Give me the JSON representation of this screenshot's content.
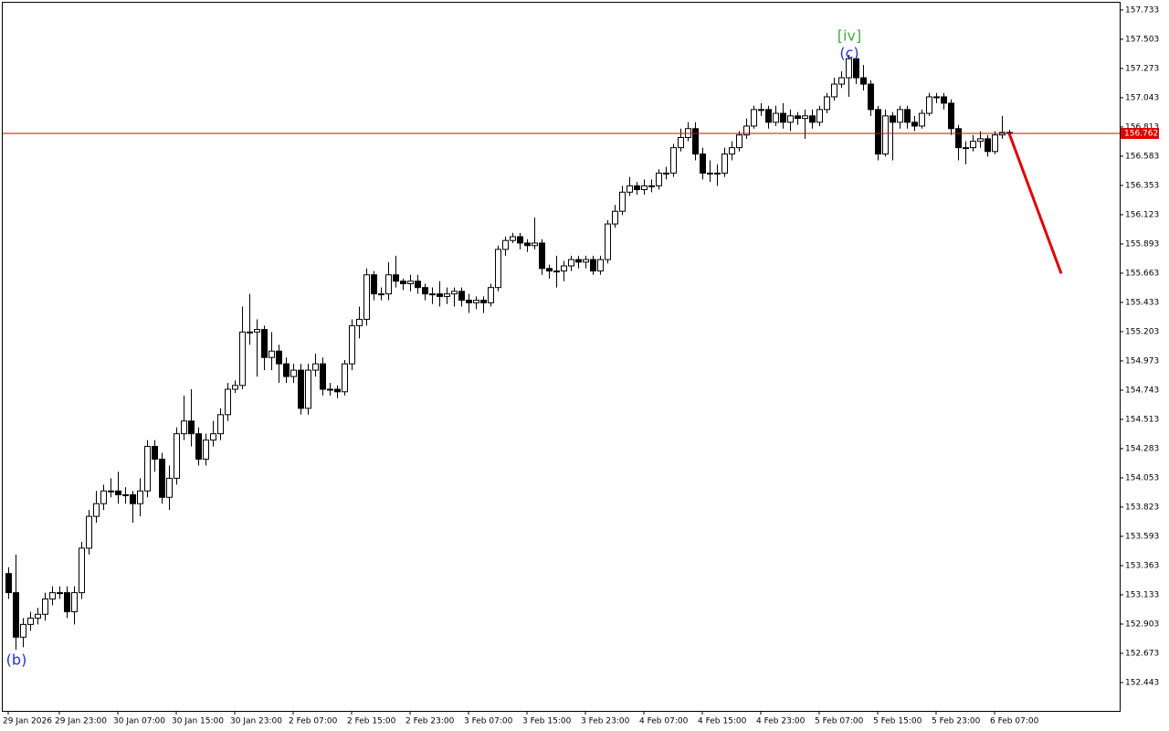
{
  "chart_data": {
    "type": "candlestick",
    "categories": [
      "29 Jan 2026",
      null,
      null,
      null,
      null,
      null,
      null,
      "29 Jan 23:00",
      null,
      null,
      null,
      null,
      null,
      null,
      null,
      "30 Jan 07:00",
      null,
      null,
      null,
      null,
      null,
      null,
      null,
      "30 Jan 15:00",
      null,
      null,
      null,
      null,
      null,
      null,
      null,
      "30 Jan 23:00",
      null,
      null,
      null,
      null,
      null,
      null,
      null,
      "2 Feb 07:00",
      null,
      null,
      null,
      null,
      null,
      null,
      null,
      "2 Feb 15:00",
      null,
      null,
      null,
      null,
      null,
      null,
      null,
      "2 Feb 23:00",
      null,
      null,
      null,
      null,
      null,
      null,
      null,
      "3 Feb 07:00",
      null,
      null,
      null,
      null,
      null,
      null,
      null,
      "3 Feb 15:00",
      null,
      null,
      null,
      null,
      null,
      null,
      null,
      "3 Feb 23:00",
      null,
      null,
      null,
      null,
      null,
      null,
      null,
      "4 Feb 07:00",
      null,
      null,
      null,
      null,
      null,
      null,
      null,
      "4 Feb 15:00",
      null,
      null,
      null,
      null,
      null,
      null,
      null,
      "4 Feb 23:00",
      null,
      null,
      null,
      null,
      null,
      null,
      null,
      "5 Feb 07:00",
      null,
      null,
      null,
      null,
      null,
      null,
      null,
      "5 Feb 15:00",
      null,
      null,
      null,
      null,
      null,
      null,
      null,
      "5 Feb 23:00",
      null,
      null,
      null,
      null,
      null,
      null,
      null,
      "6 Feb 07:00",
      null,
      null
    ],
    "open": [
      153.3,
      153.15,
      152.8,
      152.9,
      152.95,
      152.98,
      153.1,
      153.15,
      153.15,
      153.0,
      153.15,
      153.5,
      153.75,
      153.85,
      153.95,
      153.95,
      153.92,
      153.92,
      153.85,
      153.95,
      154.3,
      154.2,
      153.9,
      154.05,
      154.4,
      154.5,
      154.4,
      154.2,
      154.35,
      154.4,
      154.55,
      154.75,
      154.78,
      155.2,
      155.2,
      155.22,
      155.0,
      155.05,
      154.95,
      154.85,
      154.9,
      154.6,
      154.9,
      154.95,
      154.75,
      154.75,
      154.73,
      154.95,
      155.25,
      155.3,
      155.65,
      155.5,
      155.5,
      155.65,
      155.6,
      155.58,
      155.6,
      155.55,
      155.5,
      155.5,
      155.48,
      155.5,
      155.52,
      155.45,
      155.43,
      155.45,
      155.43,
      155.55,
      155.85,
      155.92,
      155.95,
      155.9,
      155.88,
      155.9,
      155.7,
      155.68,
      155.68,
      155.72,
      155.77,
      155.75,
      155.77,
      155.68,
      155.77,
      156.05,
      156.15,
      156.3,
      156.35,
      156.32,
      156.35,
      156.35,
      156.45,
      156.45,
      156.65,
      156.73,
      156.8,
      156.6,
      156.45,
      156.45,
      156.45,
      156.6,
      156.65,
      156.75,
      156.82,
      156.95,
      156.95,
      156.85,
      156.92,
      156.85,
      156.9,
      156.88,
      156.9,
      156.85,
      156.95,
      157.05,
      157.15,
      157.2,
      157.35,
      157.2,
      157.15,
      156.95,
      156.6,
      156.9,
      156.85,
      156.95,
      156.85,
      156.82,
      156.92,
      157.05,
      157.05,
      157.0,
      156.8,
      156.65,
      156.65,
      156.7,
      156.72,
      156.62,
      156.75,
      156.77
    ],
    "high": [
      153.35,
      153.45,
      152.95,
      153.0,
      153.03,
      153.15,
      153.2,
      153.2,
      153.2,
      153.2,
      153.55,
      153.8,
      153.95,
      154.0,
      154.05,
      154.1,
      153.98,
      153.95,
      154.05,
      154.35,
      154.35,
      154.25,
      154.15,
      154.45,
      154.7,
      154.75,
      154.45,
      154.4,
      154.5,
      154.6,
      154.8,
      154.82,
      155.4,
      155.5,
      155.3,
      155.25,
      155.2,
      155.1,
      155.0,
      154.95,
      154.95,
      154.95,
      155.03,
      155.0,
      154.8,
      154.78,
      154.98,
      155.3,
      155.4,
      155.7,
      155.68,
      155.55,
      155.75,
      155.8,
      155.62,
      155.65,
      155.65,
      155.58,
      155.55,
      155.6,
      155.55,
      155.55,
      155.55,
      155.5,
      155.48,
      155.48,
      155.58,
      155.88,
      155.95,
      155.98,
      155.98,
      155.93,
      156.1,
      155.93,
      155.73,
      155.8,
      155.76,
      155.8,
      155.8,
      155.8,
      155.8,
      155.8,
      156.08,
      156.2,
      156.35,
      156.42,
      156.38,
      156.4,
      156.4,
      156.48,
      156.5,
      156.68,
      156.8,
      156.85,
      156.85,
      156.65,
      156.55,
      156.52,
      156.65,
      156.7,
      156.78,
      156.88,
      156.98,
      157.0,
      156.98,
      156.98,
      157.0,
      156.95,
      156.93,
      156.95,
      156.95,
      156.98,
      157.08,
      157.2,
      157.25,
      157.38,
      157.37,
      157.3,
      157.18,
      156.98,
      156.95,
      156.93,
      156.98,
      156.98,
      156.9,
      156.95,
      157.08,
      157.08,
      157.08,
      157.03,
      156.83,
      156.7,
      156.75,
      156.78,
      156.75,
      156.78,
      156.9,
      156.79
    ],
    "low": [
      153.1,
      152.7,
      152.72,
      152.85,
      152.9,
      152.93,
      153.05,
      153.1,
      152.95,
      152.9,
      153.1,
      153.45,
      153.7,
      153.8,
      153.9,
      153.85,
      153.85,
      153.7,
      153.75,
      153.9,
      154.1,
      153.85,
      153.8,
      154.0,
      154.35,
      154.3,
      154.15,
      154.15,
      154.3,
      154.35,
      154.5,
      154.72,
      154.75,
      155.1,
      154.85,
      154.9,
      154.9,
      154.8,
      154.8,
      154.8,
      154.55,
      154.55,
      154.85,
      154.7,
      154.7,
      154.68,
      154.7,
      154.9,
      155.15,
      155.25,
      155.45,
      155.45,
      155.45,
      155.55,
      155.53,
      155.52,
      155.5,
      155.45,
      155.42,
      155.4,
      155.42,
      155.4,
      155.4,
      155.35,
      155.38,
      155.35,
      155.4,
      155.52,
      155.8,
      155.9,
      155.85,
      155.83,
      155.85,
      155.65,
      155.62,
      155.55,
      155.6,
      155.68,
      155.7,
      155.7,
      155.65,
      155.65,
      155.74,
      156.02,
      156.12,
      156.27,
      156.28,
      156.28,
      156.3,
      156.32,
      156.4,
      156.42,
      156.62,
      156.7,
      156.55,
      156.4,
      156.38,
      156.35,
      156.42,
      156.55,
      156.62,
      156.72,
      156.8,
      156.9,
      156.8,
      156.82,
      156.8,
      156.78,
      156.83,
      156.72,
      156.8,
      156.82,
      156.92,
      157.02,
      157.12,
      157.05,
      157.15,
      157.1,
      156.9,
      156.55,
      156.58,
      156.55,
      156.8,
      156.8,
      156.78,
      156.8,
      156.9,
      157.0,
      156.95,
      156.75,
      156.55,
      156.52,
      156.62,
      156.65,
      156.58,
      156.6,
      156.72,
      156.75
    ],
    "close": [
      153.15,
      152.8,
      152.9,
      152.95,
      152.98,
      153.1,
      153.15,
      153.15,
      153.0,
      153.15,
      153.5,
      153.75,
      153.85,
      153.95,
      153.95,
      153.92,
      153.92,
      153.85,
      153.95,
      154.3,
      154.2,
      153.9,
      154.05,
      154.4,
      154.5,
      154.4,
      154.2,
      154.35,
      154.4,
      154.55,
      154.75,
      154.78,
      155.2,
      155.2,
      155.22,
      155.0,
      155.05,
      154.95,
      154.85,
      154.9,
      154.6,
      154.9,
      154.95,
      154.75,
      154.75,
      154.73,
      154.95,
      155.25,
      155.3,
      155.65,
      155.5,
      155.5,
      155.65,
      155.6,
      155.58,
      155.6,
      155.55,
      155.5,
      155.5,
      155.48,
      155.5,
      155.52,
      155.45,
      155.43,
      155.45,
      155.43,
      155.55,
      155.85,
      155.92,
      155.95,
      155.9,
      155.88,
      155.9,
      155.7,
      155.68,
      155.68,
      155.72,
      155.77,
      155.75,
      155.77,
      155.68,
      155.77,
      156.05,
      156.15,
      156.3,
      156.35,
      156.32,
      156.35,
      156.35,
      156.45,
      156.45,
      156.65,
      156.73,
      156.8,
      156.6,
      156.45,
      156.45,
      156.45,
      156.6,
      156.65,
      156.75,
      156.82,
      156.95,
      156.95,
      156.85,
      156.92,
      156.85,
      156.9,
      156.88,
      156.9,
      156.85,
      156.95,
      157.05,
      157.15,
      157.2,
      157.35,
      157.2,
      157.15,
      156.95,
      156.6,
      156.9,
      156.85,
      156.95,
      156.85,
      156.82,
      156.92,
      157.05,
      157.05,
      157.0,
      156.8,
      156.65,
      156.65,
      156.7,
      156.72,
      156.62,
      156.75,
      156.77,
      156.762
    ],
    "ylim": [
      152.22,
      157.79
    ],
    "yticks": [
      157.733,
      157.503,
      157.273,
      157.043,
      156.813,
      156.583,
      156.353,
      156.123,
      155.893,
      155.663,
      155.433,
      155.203,
      154.973,
      154.743,
      154.513,
      154.283,
      154.053,
      153.823,
      153.593,
      153.363,
      153.133,
      152.903,
      152.673,
      152.443
    ],
    "current_price_color": "#e00000",
    "forecast": {
      "color": "#e00000",
      "values": [
        156.762,
        155.66
      ]
    },
    "annotations": [
      {
        "text": "[iv]",
        "color": "#3cb043"
      },
      {
        "text": "(c)",
        "color": "#2233cc"
      },
      {
        "text": "(b)",
        "color": "#2233cc"
      }
    ]
  }
}
